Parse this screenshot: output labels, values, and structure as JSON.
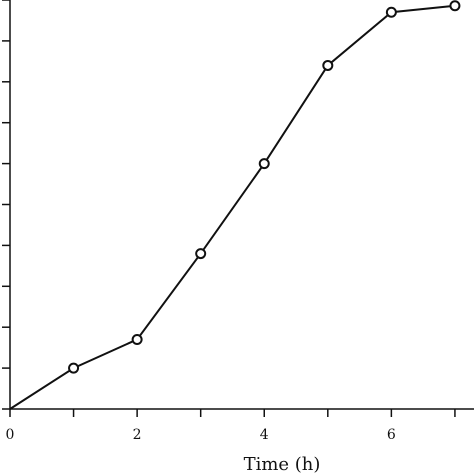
{
  "chart_data": {
    "type": "line",
    "title": "",
    "xlabel": "Time (h)",
    "ylabel": "",
    "xlim": [
      0,
      7.3
    ],
    "ylim": [
      0,
      5
    ],
    "x_ticks": [
      0,
      1,
      2,
      3,
      4,
      5,
      6,
      7
    ],
    "x_tick_labels": [
      "0",
      "",
      "2",
      "",
      "4",
      "",
      "6",
      ""
    ],
    "y_ticks": [
      0,
      0.5,
      1,
      1.5,
      2,
      2.5,
      3,
      3.5,
      4,
      4.5,
      5
    ],
    "y_tick_labels": [],
    "grid": false,
    "legend": "none",
    "series": [
      {
        "x": [
          0,
          1,
          2,
          3,
          4,
          5,
          6,
          7
        ],
        "y": [
          0,
          0.5,
          0.85,
          1.9,
          3.0,
          4.2,
          4.85,
          4.93
        ],
        "color": "#111111",
        "marker": "open-circle"
      }
    ]
  }
}
